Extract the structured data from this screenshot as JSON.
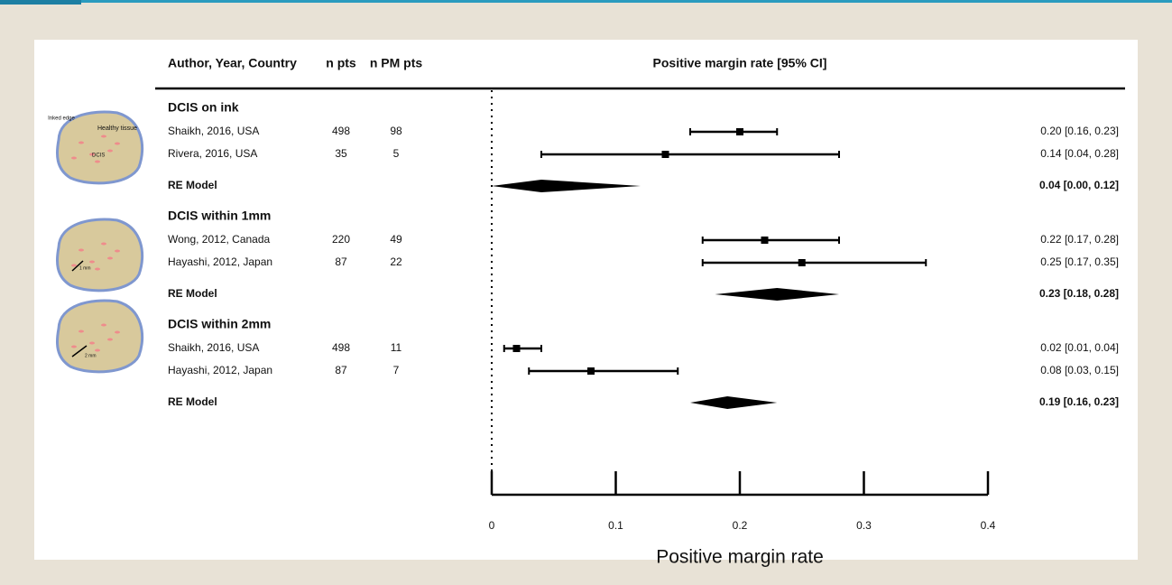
{
  "chart_data": {
    "type": "forest",
    "header": {
      "author": "Author, Year, Country",
      "n": "n pts",
      "n_pm": "n PM pts",
      "rate": "Positive margin rate [95% CI]"
    },
    "xlabel": "Positive margin rate",
    "xlim": [
      0,
      0.4
    ],
    "xticks": [
      0,
      0.1,
      0.2,
      0.3,
      0.4
    ],
    "reference_line": 0,
    "groups": [
      {
        "name": "DCIS on ink",
        "illustration": [
          "Inked edge",
          "Healthy tissue",
          "DCIS"
        ],
        "studies": [
          {
            "label": "Shaikh, 2016, USA",
            "n": 498,
            "n_pm": 98,
            "est": 0.2,
            "lo": 0.16,
            "hi": 0.23,
            "ci_label": "0.20 [0.16, 0.23]"
          },
          {
            "label": "Rivera, 2016, USA",
            "n": 35,
            "n_pm": 5,
            "est": 0.14,
            "lo": 0.04,
            "hi": 0.28,
            "ci_label": "0.14 [0.04, 0.28]"
          }
        ],
        "re_model": {
          "label": "RE Model",
          "est": 0.04,
          "lo": 0.0,
          "hi": 0.12,
          "ci_label": "0.04 [0.00, 0.12]"
        }
      },
      {
        "name": "DCIS within 1mm",
        "illustration": [
          "1 mm"
        ],
        "studies": [
          {
            "label": "Wong, 2012, Canada",
            "n": 220,
            "n_pm": 49,
            "est": 0.22,
            "lo": 0.17,
            "hi": 0.28,
            "ci_label": "0.22 [0.17, 0.28]"
          },
          {
            "label": "Hayashi, 2012, Japan",
            "n": 87,
            "n_pm": 22,
            "est": 0.25,
            "lo": 0.17,
            "hi": 0.35,
            "ci_label": "0.25 [0.17, 0.35]"
          }
        ],
        "re_model": {
          "label": "RE Model",
          "est": 0.23,
          "lo": 0.18,
          "hi": 0.28,
          "ci_label": "0.23 [0.18, 0.28]"
        }
      },
      {
        "name": "DCIS within 2mm",
        "illustration": [
          "2 mm"
        ],
        "studies": [
          {
            "label": "Shaikh, 2016, USA",
            "n": 498,
            "n_pm": 11,
            "est": 0.02,
            "lo": 0.01,
            "hi": 0.04,
            "ci_label": "0.02 [0.01, 0.04]"
          },
          {
            "label": "Hayashi, 2012, Japan",
            "n": 87,
            "n_pm": 7,
            "est": 0.08,
            "lo": 0.03,
            "hi": 0.15,
            "ci_label": "0.08 [0.03, 0.15]"
          }
        ],
        "re_model": {
          "label": "RE Model",
          "est": 0.19,
          "lo": 0.16,
          "hi": 0.23,
          "ci_label": "0.19 [0.16, 0.23]"
        }
      }
    ]
  }
}
